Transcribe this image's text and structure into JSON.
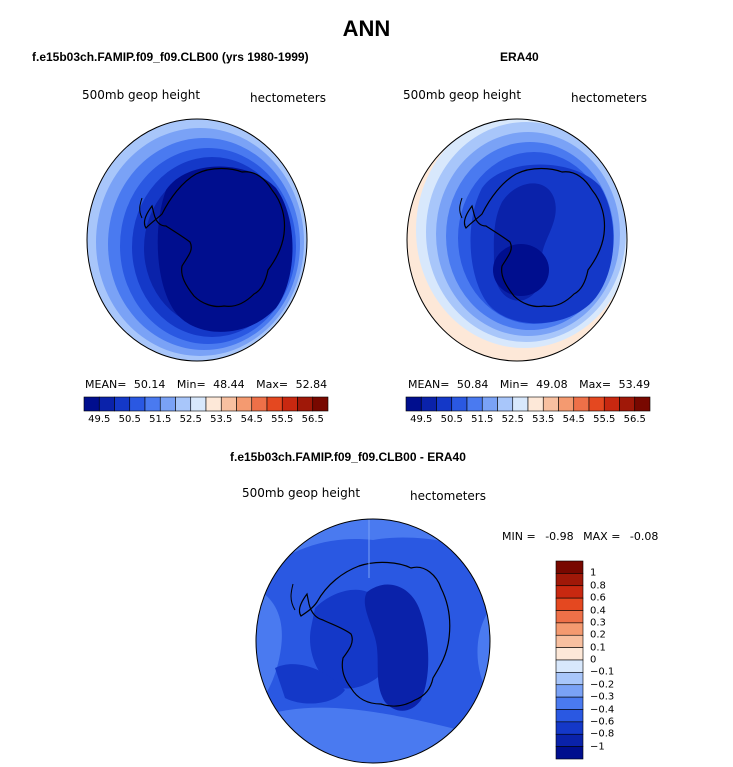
{
  "figure": {
    "title": "ANN"
  },
  "chart_data": [
    {
      "type": "heatmap",
      "projection": "south-polar-stereographic",
      "title": "f.e15b03ch.FAMIP.f09_f09.CLB00 (yrs 1980-1999)",
      "variable": "500mb geop height",
      "units": "hectometers",
      "stats": {
        "mean_label": "MEAN=",
        "mean": "50.14",
        "min_label": "Min=",
        "min": "48.44",
        "max_label": "Max=",
        "max": "52.84"
      },
      "levels": [
        "49.5",
        "50.5",
        "51.5",
        "52.5",
        "53.5",
        "54.5",
        "55.5",
        "56.5"
      ],
      "tick_labels": [
        "49.5",
        "50.5",
        "51.5",
        "52.5",
        "53.5",
        "54.5",
        "55.5",
        "56.5"
      ],
      "colors": [
        "#000e8e",
        "#0a22aa",
        "#1438c8",
        "#2a58e2",
        "#4a7af0",
        "#7aa2f6",
        "#a8c6fa",
        "#d8e8fc",
        "#fde8d8",
        "#f8c0a0",
        "#f49a70",
        "#ee7048",
        "#e44820",
        "#c82810",
        "#a01808",
        "#780800"
      ]
    },
    {
      "type": "heatmap",
      "projection": "south-polar-stereographic",
      "title": "ERA40",
      "variable": "500mb geop height",
      "units": "hectometers",
      "stats": {
        "mean_label": "MEAN=",
        "mean": "50.84",
        "min_label": "Min=",
        "min": "49.08",
        "max_label": "Max=",
        "max": "53.49"
      },
      "levels": [
        "49.5",
        "50.5",
        "51.5",
        "52.5",
        "53.5",
        "54.5",
        "55.5",
        "56.5"
      ],
      "tick_labels": [
        "49.5",
        "50.5",
        "51.5",
        "52.5",
        "53.5",
        "54.5",
        "55.5",
        "56.5"
      ],
      "colors": [
        "#000e8e",
        "#0a22aa",
        "#1438c8",
        "#2a58e2",
        "#4a7af0",
        "#7aa2f6",
        "#a8c6fa",
        "#d8e8fc",
        "#fde8d8",
        "#f8c0a0",
        "#f49a70",
        "#ee7048",
        "#e44820",
        "#c82810",
        "#a01808",
        "#780800"
      ]
    },
    {
      "type": "heatmap",
      "projection": "south-polar-stereographic",
      "title": "f.e15b03ch.FAMIP.f09_f09.CLB00 - ERA40",
      "variable": "500mb geop height",
      "units": "hectometers",
      "stats": {
        "min_label": "MIN =",
        "min": "-0.98",
        "max_label": "MAX =",
        "max": "-0.08"
      },
      "levels": [
        "-1",
        "-0.8",
        "-0.6",
        "-0.4",
        "-0.3",
        "-0.2",
        "-0.1",
        "0",
        "0.1",
        "0.2",
        "0.3",
        "0.4",
        "0.6",
        "0.8",
        "1"
      ],
      "tick_labels": [
        "1",
        "0.8",
        "0.6",
        "0.4",
        "0.3",
        "0.2",
        "0.1",
        "0",
        "−0.1",
        "−0.2",
        "−0.3",
        "−0.4",
        "−0.6",
        "−0.8",
        "−1"
      ],
      "colors": [
        "#000e8e",
        "#0a22aa",
        "#1438c8",
        "#2a58e2",
        "#4a7af0",
        "#7aa2f6",
        "#a8c6fa",
        "#d8e8fc",
        "#fde8d8",
        "#f8c0a0",
        "#f49a70",
        "#ee7048",
        "#e44820",
        "#c82810",
        "#a01808",
        "#780800"
      ]
    }
  ]
}
